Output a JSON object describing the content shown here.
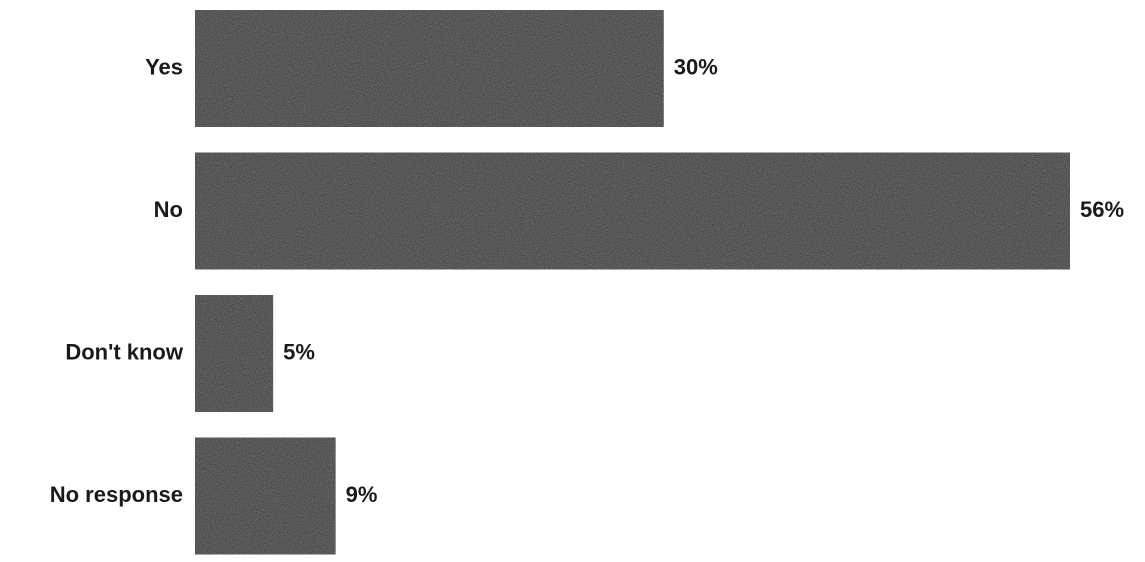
{
  "chart_data": {
    "type": "bar",
    "orientation": "horizontal",
    "categories": [
      "Yes",
      "No",
      "Don't know",
      "No response"
    ],
    "values": [
      30,
      56,
      5,
      9
    ],
    "value_labels": [
      "30%",
      "56%",
      "5%",
      "9%"
    ],
    "unit": "%",
    "title": "",
    "xlabel": "",
    "ylabel": "",
    "xlim": [
      0,
      56
    ],
    "grid": false,
    "legend": "none",
    "bar_color": "#1b1b1b"
  }
}
